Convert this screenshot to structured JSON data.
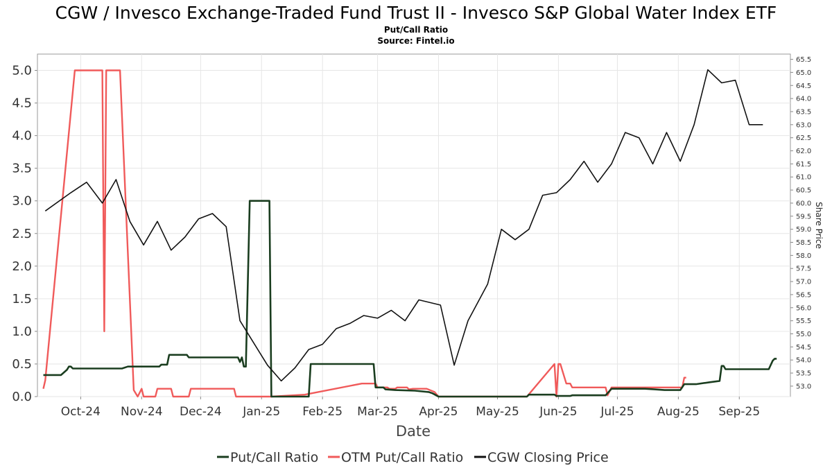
{
  "chart_data": {
    "type": "line",
    "title": "CGW / Invesco Exchange-Traded Fund Trust II - Invesco S&P Global Water Index ETF",
    "subtitle": "Put/Call Ratio",
    "source": "Source: Fintel.io",
    "xlabel": "Date",
    "ylabel": "",
    "y2label": "Share Price",
    "grid": true,
    "legend_position": "bottom",
    "x_domain": [
      "2024-09-09",
      "2025-09-27"
    ],
    "ylim": [
      0,
      5.25
    ],
    "y2lim": [
      52.6,
      65.7
    ],
    "x_ticks": [
      {
        "date": "2024-10-01",
        "label": "Oct-24"
      },
      {
        "date": "2024-11-01",
        "label": "Nov-24"
      },
      {
        "date": "2024-12-01",
        "label": "Dec-24"
      },
      {
        "date": "2025-01-01",
        "label": "Jan-25"
      },
      {
        "date": "2025-02-01",
        "label": "Feb-25"
      },
      {
        "date": "2025-03-01",
        "label": "Mar-25"
      },
      {
        "date": "2025-04-01",
        "label": "Apr-25"
      },
      {
        "date": "2025-05-01",
        "label": "May-25"
      },
      {
        "date": "2025-06-01",
        "label": "Jun-25"
      },
      {
        "date": "2025-07-01",
        "label": "Jul-25"
      },
      {
        "date": "2025-08-01",
        "label": "Aug-25"
      },
      {
        "date": "2025-09-01",
        "label": "Sep-25"
      }
    ],
    "y_ticks": [
      "0.0",
      "0.5",
      "1.0",
      "1.5",
      "2.0",
      "2.5",
      "3.0",
      "3.5",
      "4.0",
      "4.5",
      "5.0"
    ],
    "y2_ticks": [
      "53.0",
      "53.5",
      "54.0",
      "54.5",
      "55.0",
      "55.5",
      "56.0",
      "56.5",
      "57.0",
      "57.5",
      "58.0",
      "58.5",
      "59.0",
      "59.5",
      "60.0",
      "60.5",
      "61.0",
      "61.5",
      "62.0",
      "62.5",
      "63.0",
      "63.5",
      "64.0",
      "64.5",
      "65.0",
      "65.5"
    ],
    "series": [
      {
        "name": "Put/Call Ratio",
        "color": "#1a3d1f",
        "axis": "left",
        "points": [
          [
            "2024-09-12",
            0.33
          ],
          [
            "2024-09-20",
            0.33
          ],
          [
            "2024-09-21",
            0.33
          ],
          [
            "2024-09-24",
            0.41
          ],
          [
            "2024-09-25",
            0.46
          ],
          [
            "2024-09-26",
            0.46
          ],
          [
            "2024-09-27",
            0.43
          ],
          [
            "2024-10-10",
            0.43
          ],
          [
            "2024-10-22",
            0.43
          ],
          [
            "2024-10-25",
            0.46
          ],
          [
            "2024-11-10",
            0.46
          ],
          [
            "2024-11-11",
            0.49
          ],
          [
            "2024-11-14",
            0.49
          ],
          [
            "2024-11-15",
            0.64
          ],
          [
            "2024-11-24",
            0.64
          ],
          [
            "2024-11-25",
            0.6
          ],
          [
            "2024-12-20",
            0.6
          ],
          [
            "2024-12-21",
            0.53
          ],
          [
            "2024-12-22",
            0.6
          ],
          [
            "2024-12-23",
            0.46
          ],
          [
            "2024-12-24",
            0.46
          ],
          [
            "2024-12-26",
            3.0
          ],
          [
            "2025-01-05",
            3.0
          ],
          [
            "2025-01-06",
            0.0
          ],
          [
            "2025-01-25",
            0.0
          ],
          [
            "2025-01-26",
            0.5
          ],
          [
            "2025-02-27",
            0.5
          ],
          [
            "2025-02-28",
            0.14
          ],
          [
            "2025-03-04",
            0.14
          ],
          [
            "2025-03-05",
            0.11
          ],
          [
            "2025-03-10",
            0.1
          ],
          [
            "2025-03-20",
            0.09
          ],
          [
            "2025-03-27",
            0.07
          ],
          [
            "2025-03-29",
            0.05
          ],
          [
            "2025-04-01",
            0.0
          ],
          [
            "2025-05-16",
            0.0
          ],
          [
            "2025-05-17",
            0.03
          ],
          [
            "2025-05-30",
            0.03
          ],
          [
            "2025-05-31",
            0.01
          ],
          [
            "2025-06-07",
            0.01
          ],
          [
            "2025-06-08",
            0.02
          ],
          [
            "2025-06-25",
            0.02
          ],
          [
            "2025-06-28",
            0.12
          ],
          [
            "2025-07-15",
            0.12
          ],
          [
            "2025-07-20",
            0.11
          ],
          [
            "2025-07-25",
            0.1
          ],
          [
            "2025-08-02",
            0.1
          ],
          [
            "2025-08-04",
            0.19
          ],
          [
            "2025-08-10",
            0.19
          ],
          [
            "2025-08-17",
            0.22
          ],
          [
            "2025-08-22",
            0.24
          ],
          [
            "2025-08-23",
            0.47
          ],
          [
            "2025-08-24",
            0.47
          ],
          [
            "2025-08-25",
            0.42
          ],
          [
            "2025-09-16",
            0.42
          ],
          [
            "2025-09-18",
            0.55
          ],
          [
            "2025-09-19",
            0.58
          ],
          [
            "2025-09-20",
            0.58
          ]
        ]
      },
      {
        "name": "OTM Put/Call Ratio",
        "color": "#f05a5a",
        "axis": "left",
        "points": [
          [
            "2024-09-12",
            0.12
          ],
          [
            "2024-09-13",
            0.25
          ],
          [
            "2024-09-28",
            5.0
          ],
          [
            "2024-10-12",
            5.0
          ],
          [
            "2024-10-13",
            1.0
          ],
          [
            "2024-10-14",
            5.0
          ],
          [
            "2024-10-20",
            5.0
          ],
          [
            "2024-10-21",
            5.0
          ],
          [
            "2024-10-28",
            0.1
          ],
          [
            "2024-10-30",
            0.0
          ],
          [
            "2024-11-01",
            0.12
          ],
          [
            "2024-11-02",
            0.0
          ],
          [
            "2024-11-08",
            0.0
          ],
          [
            "2024-11-09",
            0.12
          ],
          [
            "2024-11-16",
            0.12
          ],
          [
            "2024-11-17",
            0.0
          ],
          [
            "2024-11-25",
            0.0
          ],
          [
            "2024-11-26",
            0.12
          ],
          [
            "2024-12-18",
            0.12
          ],
          [
            "2024-12-19",
            0.0
          ],
          [
            "2025-01-06",
            0.0
          ],
          [
            "2025-01-23",
            0.03
          ],
          [
            "2025-02-21",
            0.2
          ],
          [
            "2025-02-28",
            0.2
          ],
          [
            "2025-03-01",
            0.14
          ],
          [
            "2025-03-06",
            0.14
          ],
          [
            "2025-03-07",
            0.12
          ],
          [
            "2025-03-10",
            0.12
          ],
          [
            "2025-03-11",
            0.14
          ],
          [
            "2025-03-16",
            0.14
          ],
          [
            "2025-03-17",
            0.11
          ],
          [
            "2025-03-19",
            0.12
          ],
          [
            "2025-03-26",
            0.12
          ],
          [
            "2025-03-30",
            0.07
          ],
          [
            "2025-04-01",
            0.0
          ],
          [
            "2025-05-16",
            0.0
          ],
          [
            "2025-05-30",
            0.5
          ],
          [
            "2025-05-31",
            0.0
          ],
          [
            "2025-06-01",
            0.5
          ],
          [
            "2025-06-02",
            0.5
          ],
          [
            "2025-06-05",
            0.2
          ],
          [
            "2025-06-07",
            0.2
          ],
          [
            "2025-06-08",
            0.14
          ],
          [
            "2025-06-25",
            0.14
          ],
          [
            "2025-06-26",
            0.02
          ],
          [
            "2025-06-28",
            0.14
          ],
          [
            "2025-08-03",
            0.14
          ],
          [
            "2025-08-04",
            0.29
          ],
          [
            "2025-08-05",
            0.29
          ]
        ]
      },
      {
        "name": "CGW Closing Price",
        "color": "#111111",
        "axis": "right",
        "points": [
          [
            "2024-09-13",
            59.7
          ],
          [
            "2024-09-26",
            60.4
          ],
          [
            "2024-10-04",
            60.8
          ],
          [
            "2024-10-12",
            60.0
          ],
          [
            "2024-10-19",
            60.9
          ],
          [
            "2024-10-26",
            59.3
          ],
          [
            "2024-11-02",
            58.4
          ],
          [
            "2024-11-09",
            59.3
          ],
          [
            "2024-11-16",
            58.2
          ],
          [
            "2024-11-23",
            58.7
          ],
          [
            "2024-11-30",
            59.4
          ],
          [
            "2024-12-07",
            59.6
          ],
          [
            "2024-12-14",
            59.1
          ],
          [
            "2024-12-21",
            55.5
          ],
          [
            "2025-01-04",
            53.8
          ],
          [
            "2025-01-11",
            53.2
          ],
          [
            "2025-01-18",
            53.7
          ],
          [
            "2025-01-25",
            54.4
          ],
          [
            "2025-02-01",
            54.6
          ],
          [
            "2025-02-08",
            55.2
          ],
          [
            "2025-02-15",
            55.4
          ],
          [
            "2025-02-22",
            55.7
          ],
          [
            "2025-03-01",
            55.6
          ],
          [
            "2025-03-08",
            55.9
          ],
          [
            "2025-03-15",
            55.5
          ],
          [
            "2025-03-22",
            56.3
          ],
          [
            "2025-04-02",
            56.1
          ],
          [
            "2025-04-09",
            53.8
          ],
          [
            "2025-04-16",
            55.5
          ],
          [
            "2025-04-26",
            56.9
          ],
          [
            "2025-05-03",
            59.0
          ],
          [
            "2025-05-10",
            58.6
          ],
          [
            "2025-05-17",
            59.0
          ],
          [
            "2025-05-24",
            60.3
          ],
          [
            "2025-05-31",
            60.4
          ],
          [
            "2025-06-07",
            60.9
          ],
          [
            "2025-06-14",
            61.6
          ],
          [
            "2025-06-21",
            60.8
          ],
          [
            "2025-06-28",
            61.5
          ],
          [
            "2025-07-05",
            62.7
          ],
          [
            "2025-07-12",
            62.5
          ],
          [
            "2025-07-19",
            61.5
          ],
          [
            "2025-07-26",
            62.7
          ],
          [
            "2025-08-02",
            61.6
          ],
          [
            "2025-08-09",
            63.0
          ],
          [
            "2025-08-16",
            65.1
          ],
          [
            "2025-08-23",
            64.6
          ],
          [
            "2025-08-30",
            64.7
          ],
          [
            "2025-09-06",
            63.0
          ],
          [
            "2025-09-13",
            63.0
          ]
        ]
      }
    ]
  }
}
